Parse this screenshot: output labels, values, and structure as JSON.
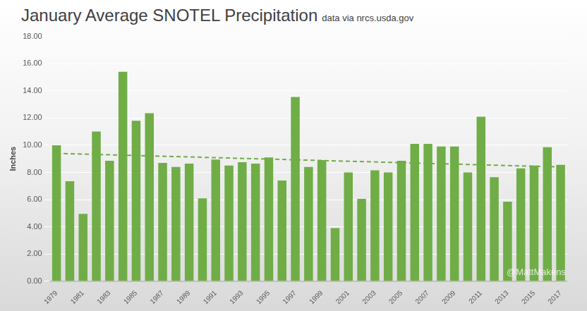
{
  "chart_data": {
    "type": "bar",
    "title": "January Average SNOTEL Precipitation",
    "subtitle": "data via nrcs.usda.gov",
    "y_label": "Inches",
    "annotations": [
      "@MattMakens"
    ],
    "categories": [
      "1979",
      null,
      "1981",
      null,
      "1983",
      null,
      "1985",
      null,
      "1987",
      null,
      "1989",
      null,
      "1991",
      null,
      "1993",
      null,
      "1995",
      null,
      "1997",
      null,
      "1999",
      null,
      "2001",
      null,
      "2003",
      null,
      "2005",
      null,
      "2007",
      null,
      "2009",
      null,
      "2011",
      null,
      "2013",
      null,
      "2015",
      null,
      "2017"
    ],
    "series": [
      {
        "type": "bar",
        "color": "#70ad47",
        "values": [
          10.0,
          7.35,
          4.95,
          11.0,
          8.85,
          15.4,
          11.8,
          12.35,
          8.7,
          8.4,
          8.65,
          6.1,
          8.95,
          8.5,
          8.75,
          8.65,
          9.1,
          7.4,
          13.55,
          8.4,
          8.9,
          3.9,
          8.0,
          6.05,
          8.15,
          8.0,
          8.85,
          10.1,
          10.1,
          9.9,
          9.9,
          8.0,
          12.1,
          7.65,
          5.85,
          8.3,
          8.5,
          9.85,
          8.55
        ]
      },
      {
        "type": "line",
        "color": "#70ad47",
        "line_style": "dashed",
        "values": [
          9.4,
          null,
          null,
          null,
          null,
          null,
          null,
          null,
          null,
          null,
          null,
          null,
          null,
          null,
          null,
          null,
          null,
          null,
          null,
          null,
          null,
          null,
          null,
          null,
          null,
          null,
          null,
          null,
          null,
          null,
          null,
          null,
          null,
          null,
          null,
          null,
          null,
          null,
          8.4
        ]
      }
    ],
    "ylim": [
      0,
      18
    ],
    "yticks": [
      {
        "value": 0,
        "label": "0.00"
      },
      {
        "value": 2,
        "label": "2.00"
      },
      {
        "value": 4,
        "label": "4.00"
      },
      {
        "value": 6,
        "label": "6.00"
      },
      {
        "value": 8,
        "label": "8.00"
      },
      {
        "value": 10,
        "label": "10.00"
      },
      {
        "value": 12,
        "label": "12.00"
      },
      {
        "value": 14,
        "label": "14.00"
      },
      {
        "value": 16,
        "label": "16.00"
      },
      {
        "value": 18,
        "label": "18.00"
      }
    ],
    "grid": true
  }
}
